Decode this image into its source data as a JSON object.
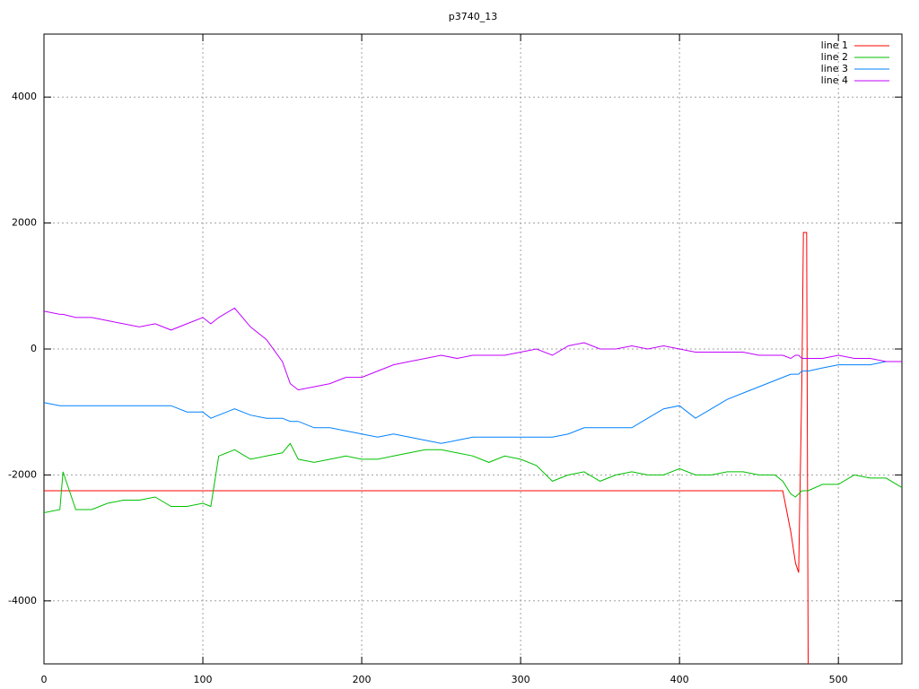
{
  "chart_data": {
    "type": "line",
    "title": "p3740_13",
    "x": [
      0,
      10,
      12,
      20,
      30,
      40,
      50,
      60,
      70,
      80,
      90,
      100,
      105,
      110,
      120,
      130,
      140,
      150,
      155,
      160,
      170,
      180,
      190,
      200,
      210,
      220,
      230,
      240,
      250,
      260,
      270,
      280,
      290,
      300,
      310,
      320,
      330,
      340,
      350,
      360,
      370,
      380,
      390,
      400,
      410,
      420,
      430,
      440,
      450,
      460,
      465,
      470,
      473,
      475,
      477,
      478,
      480,
      481,
      490,
      500,
      510,
      520,
      530,
      540
    ],
    "series": [
      {
        "name": "line 1",
        "color": "#ff0000",
        "values": [
          -2250,
          -2250,
          -2250,
          -2250,
          -2250,
          -2250,
          -2250,
          -2250,
          -2250,
          -2250,
          -2250,
          -2250,
          -2250,
          -2250,
          -2250,
          -2250,
          -2250,
          -2250,
          -2250,
          -2250,
          -2250,
          -2250,
          -2250,
          -2250,
          -2250,
          -2250,
          -2250,
          -2250,
          -2250,
          -2250,
          -2250,
          -2250,
          -2250,
          -2250,
          -2250,
          -2250,
          -2250,
          -2250,
          -2250,
          -2250,
          -2250,
          -2250,
          -2250,
          -2250,
          -2250,
          -2250,
          -2250,
          -2250,
          -2250,
          -2250,
          -2250,
          -2900,
          -3400,
          -3550,
          -500,
          1850,
          1850,
          -5000,
          null,
          null,
          null,
          null,
          null,
          null
        ]
      },
      {
        "name": "line 2",
        "color": "#00c000",
        "values": [
          -2600,
          -2550,
          -1950,
          -2550,
          -2550,
          -2450,
          -2400,
          -2400,
          -2350,
          -2500,
          -2500,
          -2450,
          -2500,
          -1700,
          -1600,
          -1750,
          -1700,
          -1650,
          -1500,
          -1750,
          -1800,
          -1750,
          -1700,
          -1750,
          -1750,
          -1700,
          -1650,
          -1600,
          -1600,
          -1650,
          -1700,
          -1800,
          -1700,
          -1750,
          -1850,
          -2100,
          -2000,
          -1950,
          -2100,
          -2000,
          -1950,
          -2000,
          -2000,
          -1900,
          -2000,
          -2000,
          -1950,
          -1950,
          -2000,
          -2000,
          -2100,
          -2300,
          -2350,
          -2300,
          -2250,
          -2250,
          -2250,
          -2250,
          -2150,
          -2150,
          -2000,
          -2050,
          -2050,
          -2200
        ]
      },
      {
        "name": "line 3",
        "color": "#0080ff",
        "values": [
          -850,
          -900,
          -900,
          -900,
          -900,
          -900,
          -900,
          -900,
          -900,
          -900,
          -1000,
          -1000,
          -1100,
          -1050,
          -950,
          -1050,
          -1100,
          -1100,
          -1150,
          -1150,
          -1250,
          -1250,
          -1300,
          -1350,
          -1400,
          -1350,
          -1400,
          -1450,
          -1500,
          -1450,
          -1400,
          -1400,
          -1400,
          -1400,
          -1400,
          -1400,
          -1350,
          -1250,
          -1250,
          -1250,
          -1250,
          -1100,
          -950,
          -900,
          -1100,
          -950,
          -800,
          -700,
          -600,
          -500,
          -450,
          -400,
          -400,
          -400,
          -350,
          -350,
          -350,
          -350,
          -300,
          -250,
          -250,
          -250,
          -200,
          -200
        ]
      },
      {
        "name": "line 4",
        "color": "#c000ff",
        "values": [
          600,
          550,
          550,
          500,
          500,
          450,
          400,
          350,
          400,
          300,
          400,
          500,
          400,
          500,
          650,
          350,
          150,
          -200,
          -550,
          -650,
          -600,
          -550,
          -450,
          -450,
          -350,
          -250,
          -200,
          -150,
          -100,
          -150,
          -100,
          -100,
          -100,
          -50,
          0,
          -100,
          50,
          100,
          0,
          0,
          50,
          0,
          50,
          0,
          -50,
          -50,
          -50,
          -50,
          -100,
          -100,
          -100,
          -150,
          -100,
          -100,
          -150,
          -150,
          -150,
          -150,
          -150,
          -100,
          -150,
          -150,
          -200,
          -200
        ]
      }
    ],
    "xlim": [
      0,
      540
    ],
    "ylim": [
      -5000,
      5000
    ],
    "xticks": [
      0,
      100,
      200,
      300,
      400,
      500
    ],
    "yticks": [
      -4000,
      -2000,
      0,
      2000,
      4000
    ],
    "grid": true,
    "legend": "top-right"
  }
}
